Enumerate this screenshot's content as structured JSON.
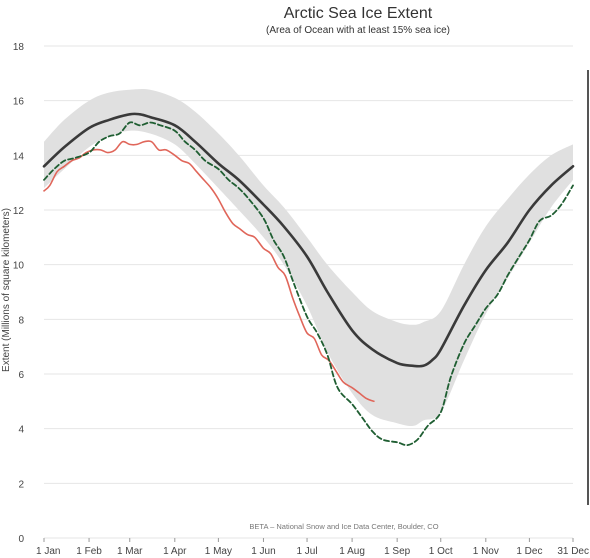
{
  "chart_data": {
    "type": "line",
    "title": "Arctic Sea Ice Extent",
    "subtitle": "(Area of Ocean with at least 15% sea ice)",
    "ylabel": "Extent (Millions of square kilometers)",
    "xlabel": "",
    "credit": "BETA – National Snow and Ice Data Center, Boulder, CO",
    "ylim": [
      0,
      18
    ],
    "yticks": [
      0,
      2,
      4,
      6,
      8,
      10,
      12,
      14,
      16,
      18
    ],
    "xlim": [
      1,
      365
    ],
    "xticks": [
      {
        "day": 1,
        "label": "1 Jan"
      },
      {
        "day": 32,
        "label": "1 Feb"
      },
      {
        "day": 60,
        "label": "1 Mar"
      },
      {
        "day": 91,
        "label": "1 Apr"
      },
      {
        "day": 121,
        "label": "1 May"
      },
      {
        "day": 152,
        "label": "1 Jun"
      },
      {
        "day": 182,
        "label": "1 Jul"
      },
      {
        "day": 213,
        "label": "1 Aug"
      },
      {
        "day": 244,
        "label": "1 Sep"
      },
      {
        "day": 274,
        "label": "1 Oct"
      },
      {
        "day": 305,
        "label": "1 Nov"
      },
      {
        "day": 335,
        "label": "1 Dec"
      },
      {
        "day": 365,
        "label": "31 Dec"
      }
    ],
    "grid": true,
    "colors": {
      "band": "#e0e0e0",
      "median": "#3a3a3a",
      "current": "#e0665a",
      "dashed": "#1f5e32",
      "grid": "#e6e6e6"
    },
    "band": {
      "x": [
        1,
        15,
        32,
        46,
        60,
        74,
        91,
        105,
        121,
        135,
        152,
        166,
        182,
        196,
        213,
        227,
        244,
        255,
        262,
        274,
        290,
        305,
        320,
        335,
        350,
        365
      ],
      "lower": [
        12.8,
        13.5,
        14.3,
        14.7,
        14.9,
        14.8,
        14.4,
        13.7,
        12.8,
        12.0,
        11.0,
        10.0,
        8.5,
        6.8,
        5.3,
        4.5,
        4.2,
        4.1,
        4.3,
        4.6,
        6.5,
        8.2,
        9.5,
        10.8,
        12.1,
        13.1
      ],
      "upper": [
        14.5,
        15.3,
        16.0,
        16.3,
        16.4,
        16.4,
        16.1,
        15.6,
        14.8,
        14.0,
        12.9,
        12.1,
        11.0,
        10.0,
        9.0,
        8.3,
        7.9,
        7.8,
        7.9,
        8.3,
        10.0,
        11.4,
        12.4,
        13.3,
        14.0,
        14.4
      ]
    },
    "series": [
      {
        "style": "median",
        "x": [
          1,
          15,
          32,
          46,
          60,
          67,
          74,
          91,
          105,
          121,
          135,
          152,
          166,
          182,
          196,
          213,
          227,
          244,
          255,
          262,
          268,
          274,
          290,
          305,
          320,
          335,
          350,
          365
        ],
        "y": [
          13.6,
          14.3,
          15.0,
          15.3,
          15.5,
          15.5,
          15.4,
          15.1,
          14.5,
          13.7,
          13.1,
          12.2,
          11.4,
          10.3,
          9.0,
          7.6,
          6.9,
          6.4,
          6.3,
          6.3,
          6.5,
          6.9,
          8.5,
          9.8,
          10.8,
          12.0,
          12.9,
          13.6
        ]
      },
      {
        "style": "current",
        "x": [
          1,
          5,
          10,
          15,
          20,
          25,
          30,
          35,
          40,
          45,
          50,
          55,
          60,
          65,
          70,
          75,
          80,
          85,
          91,
          96,
          101,
          106,
          111,
          116,
          121,
          126,
          131,
          136,
          141,
          146,
          152,
          157,
          162,
          167,
          172,
          177,
          182,
          187,
          192,
          197,
          202,
          207,
          213,
          218,
          223,
          228
        ],
        "y": [
          12.7,
          12.9,
          13.4,
          13.6,
          13.8,
          13.9,
          14.1,
          14.2,
          14.2,
          14.1,
          14.2,
          14.5,
          14.4,
          14.4,
          14.5,
          14.5,
          14.2,
          14.2,
          14.0,
          13.8,
          13.7,
          13.4,
          13.1,
          12.8,
          12.4,
          11.9,
          11.5,
          11.3,
          11.1,
          11.0,
          10.6,
          10.4,
          9.9,
          9.6,
          8.8,
          8.1,
          7.5,
          7.3,
          6.7,
          6.5,
          6.1,
          5.7,
          5.5,
          5.3,
          5.1,
          5.0
        ]
      },
      {
        "style": "dashed",
        "x": [
          1,
          8,
          15,
          22,
          32,
          39,
          46,
          53,
          60,
          67,
          74,
          81,
          91,
          98,
          105,
          112,
          121,
          128,
          135,
          142,
          152,
          159,
          166,
          173,
          182,
          189,
          196,
          203,
          213,
          220,
          227,
          234,
          244,
          251,
          258,
          265,
          274,
          281,
          290,
          298,
          305,
          313,
          320,
          328,
          335,
          342,
          350,
          357,
          365
        ],
        "y": [
          13.1,
          13.5,
          13.8,
          13.9,
          14.1,
          14.5,
          14.7,
          14.8,
          15.2,
          15.1,
          15.2,
          15.1,
          14.9,
          14.5,
          14.2,
          13.8,
          13.5,
          13.1,
          12.8,
          12.4,
          11.7,
          10.9,
          10.3,
          9.3,
          8.1,
          7.5,
          6.7,
          5.5,
          4.9,
          4.4,
          3.9,
          3.6,
          3.5,
          3.4,
          3.6,
          4.1,
          4.6,
          5.9,
          7.1,
          7.8,
          8.4,
          8.9,
          9.6,
          10.3,
          10.9,
          11.6,
          11.8,
          12.2,
          12.9
        ]
      }
    ]
  }
}
